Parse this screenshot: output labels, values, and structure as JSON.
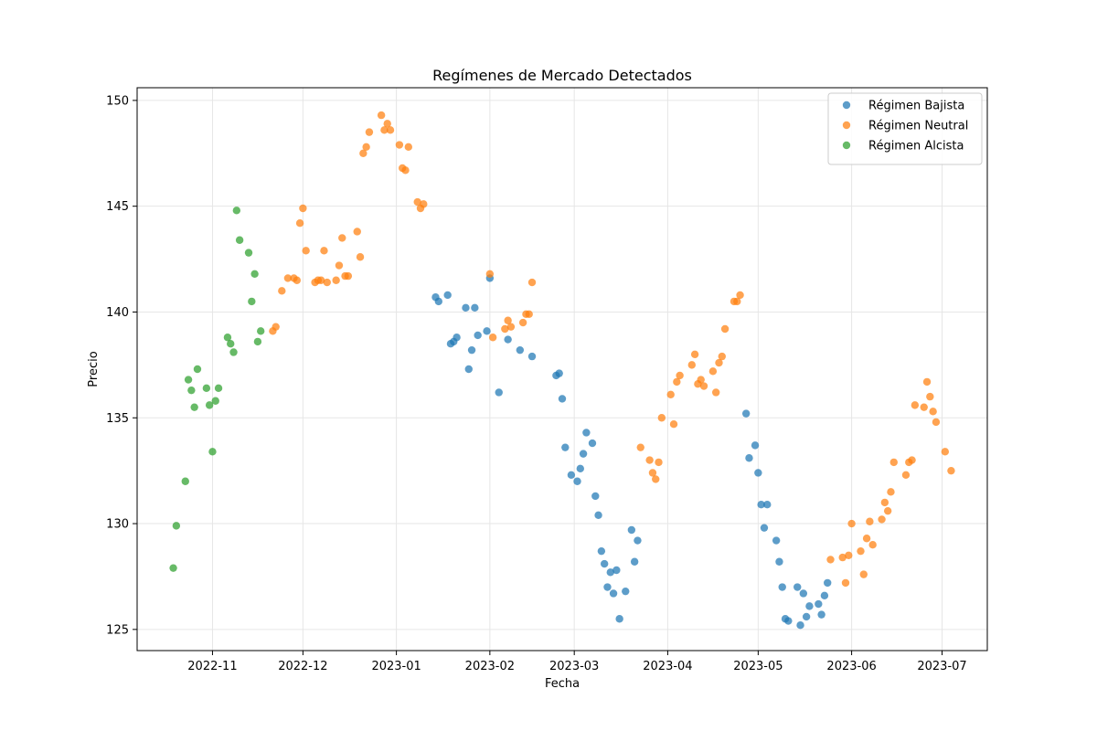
{
  "chart_data": {
    "type": "scatter",
    "title": "Regímenes de Mercado Detectados",
    "xlabel": "Fecha",
    "ylabel": "Precio",
    "x_type": "date",
    "xlim": [
      "2022-10-07",
      "2023-07-16"
    ],
    "ylim": [
      124.0,
      150.6
    ],
    "x_tick_labels": [
      "2022-11",
      "2022-12",
      "2023-01",
      "2023-02",
      "2023-03",
      "2023-04",
      "2023-05",
      "2023-06",
      "2023-07"
    ],
    "y_tick_labels": [
      "125",
      "130",
      "135",
      "140",
      "145",
      "150"
    ],
    "grid": true,
    "legend_position": "top-right",
    "series": [
      {
        "name": "Régimen Bajista",
        "color": "#1f77b4",
        "points": [
          [
            "2023-01-14",
            140.7
          ],
          [
            "2023-01-15",
            140.5
          ],
          [
            "2023-01-18",
            140.8
          ],
          [
            "2023-01-19",
            138.5
          ],
          [
            "2023-01-20",
            138.6
          ],
          [
            "2023-01-21",
            138.8
          ],
          [
            "2023-01-24",
            140.2
          ],
          [
            "2023-01-25",
            137.3
          ],
          [
            "2023-01-26",
            138.2
          ],
          [
            "2023-01-27",
            140.2
          ],
          [
            "2023-01-28",
            138.9
          ],
          [
            "2023-01-31",
            139.1
          ],
          [
            "2023-02-01",
            141.6
          ],
          [
            "2023-02-04",
            136.2
          ],
          [
            "2023-02-07",
            138.7
          ],
          [
            "2023-02-11",
            138.2
          ],
          [
            "2023-02-15",
            137.9
          ],
          [
            "2023-02-23",
            137.0
          ],
          [
            "2023-02-24",
            137.1
          ],
          [
            "2023-02-25",
            135.9
          ],
          [
            "2023-02-26",
            133.6
          ],
          [
            "2023-02-28",
            132.3
          ],
          [
            "2023-03-02",
            132.0
          ],
          [
            "2023-03-03",
            132.6
          ],
          [
            "2023-03-04",
            133.3
          ],
          [
            "2023-03-05",
            134.3
          ],
          [
            "2023-03-07",
            133.8
          ],
          [
            "2023-03-08",
            131.3
          ],
          [
            "2023-03-09",
            130.4
          ],
          [
            "2023-03-10",
            128.7
          ],
          [
            "2023-03-11",
            128.1
          ],
          [
            "2023-03-12",
            127.0
          ],
          [
            "2023-03-13",
            127.7
          ],
          [
            "2023-03-14",
            126.7
          ],
          [
            "2023-03-15",
            127.8
          ],
          [
            "2023-03-16",
            125.5
          ],
          [
            "2023-03-18",
            126.8
          ],
          [
            "2023-03-20",
            129.7
          ],
          [
            "2023-03-21",
            128.2
          ],
          [
            "2023-03-22",
            129.2
          ],
          [
            "2023-04-27",
            135.2
          ],
          [
            "2023-04-28",
            133.1
          ],
          [
            "2023-04-30",
            133.7
          ],
          [
            "2023-05-01",
            132.4
          ],
          [
            "2023-05-02",
            130.9
          ],
          [
            "2023-05-03",
            129.8
          ],
          [
            "2023-05-04",
            130.9
          ],
          [
            "2023-05-07",
            129.2
          ],
          [
            "2023-05-08",
            128.2
          ],
          [
            "2023-05-09",
            127.0
          ],
          [
            "2023-05-10",
            125.5
          ],
          [
            "2023-05-11",
            125.4
          ],
          [
            "2023-05-14",
            127.0
          ],
          [
            "2023-05-15",
            125.2
          ],
          [
            "2023-05-16",
            126.7
          ],
          [
            "2023-05-17",
            125.6
          ],
          [
            "2023-05-18",
            126.1
          ],
          [
            "2023-05-21",
            126.2
          ],
          [
            "2023-05-22",
            125.7
          ],
          [
            "2023-05-23",
            126.6
          ],
          [
            "2023-05-24",
            127.2
          ]
        ]
      },
      {
        "name": "Régimen Neutral",
        "color": "#ff7f0e",
        "points": [
          [
            "2022-11-21",
            139.1
          ],
          [
            "2022-11-22",
            139.3
          ],
          [
            "2022-11-24",
            141.0
          ],
          [
            "2022-11-26",
            141.6
          ],
          [
            "2022-11-28",
            141.6
          ],
          [
            "2022-11-29",
            141.5
          ],
          [
            "2022-11-30",
            144.2
          ],
          [
            "2022-12-01",
            144.9
          ],
          [
            "2022-12-02",
            142.9
          ],
          [
            "2022-12-05",
            141.4
          ],
          [
            "2022-12-06",
            141.5
          ],
          [
            "2022-12-07",
            141.5
          ],
          [
            "2022-12-08",
            142.9
          ],
          [
            "2022-12-09",
            141.4
          ],
          [
            "2022-12-12",
            141.5
          ],
          [
            "2022-12-13",
            142.2
          ],
          [
            "2022-12-14",
            143.5
          ],
          [
            "2022-12-15",
            141.7
          ],
          [
            "2022-12-16",
            141.7
          ],
          [
            "2022-12-19",
            143.8
          ],
          [
            "2022-12-20",
            142.6
          ],
          [
            "2022-12-21",
            147.5
          ],
          [
            "2022-12-22",
            147.8
          ],
          [
            "2022-12-23",
            148.5
          ],
          [
            "2022-12-27",
            149.3
          ],
          [
            "2022-12-28",
            148.6
          ],
          [
            "2022-12-29",
            148.9
          ],
          [
            "2022-12-30",
            148.6
          ],
          [
            "2023-01-02",
            147.9
          ],
          [
            "2023-01-03",
            146.8
          ],
          [
            "2023-01-04",
            146.7
          ],
          [
            "2023-01-05",
            147.8
          ],
          [
            "2023-01-08",
            145.2
          ],
          [
            "2023-01-09",
            144.9
          ],
          [
            "2023-01-10",
            145.1
          ],
          [
            "2023-02-01",
            141.8
          ],
          [
            "2023-02-02",
            138.8
          ],
          [
            "2023-02-06",
            139.2
          ],
          [
            "2023-02-07",
            139.6
          ],
          [
            "2023-02-08",
            139.3
          ],
          [
            "2023-02-12",
            139.5
          ],
          [
            "2023-02-13",
            139.9
          ],
          [
            "2023-02-14",
            139.9
          ],
          [
            "2023-02-15",
            141.4
          ],
          [
            "2023-03-23",
            133.6
          ],
          [
            "2023-03-26",
            133.0
          ],
          [
            "2023-03-27",
            132.4
          ],
          [
            "2023-03-28",
            132.1
          ],
          [
            "2023-03-29",
            132.9
          ],
          [
            "2023-03-30",
            135.0
          ],
          [
            "2023-04-02",
            136.1
          ],
          [
            "2023-04-03",
            134.7
          ],
          [
            "2023-04-04",
            136.7
          ],
          [
            "2023-04-05",
            137.0
          ],
          [
            "2023-04-09",
            137.5
          ],
          [
            "2023-04-10",
            138.0
          ],
          [
            "2023-04-11",
            136.6
          ],
          [
            "2023-04-12",
            136.8
          ],
          [
            "2023-04-13",
            136.5
          ],
          [
            "2023-04-16",
            137.2
          ],
          [
            "2023-04-17",
            136.2
          ],
          [
            "2023-04-18",
            137.6
          ],
          [
            "2023-04-19",
            137.9
          ],
          [
            "2023-04-20",
            139.2
          ],
          [
            "2023-04-23",
            140.5
          ],
          [
            "2023-04-24",
            140.5
          ],
          [
            "2023-04-25",
            140.8
          ],
          [
            "2023-05-25",
            128.3
          ],
          [
            "2023-05-29",
            128.4
          ],
          [
            "2023-05-30",
            127.2
          ],
          [
            "2023-05-31",
            128.5
          ],
          [
            "2023-06-01",
            130.0
          ],
          [
            "2023-06-04",
            128.7
          ],
          [
            "2023-06-05",
            127.6
          ],
          [
            "2023-06-06",
            129.3
          ],
          [
            "2023-06-07",
            130.1
          ],
          [
            "2023-06-08",
            129.0
          ],
          [
            "2023-06-11",
            130.2
          ],
          [
            "2023-06-12",
            131.0
          ],
          [
            "2023-06-13",
            130.6
          ],
          [
            "2023-06-14",
            131.5
          ],
          [
            "2023-06-15",
            132.9
          ],
          [
            "2023-06-19",
            132.3
          ],
          [
            "2023-06-20",
            132.9
          ],
          [
            "2023-06-21",
            133.0
          ],
          [
            "2023-06-22",
            135.6
          ],
          [
            "2023-06-25",
            135.5
          ],
          [
            "2023-06-26",
            136.7
          ],
          [
            "2023-06-27",
            136.0
          ],
          [
            "2023-06-28",
            135.3
          ],
          [
            "2023-06-29",
            134.8
          ],
          [
            "2023-07-02",
            133.4
          ],
          [
            "2023-07-04",
            132.5
          ]
        ]
      },
      {
        "name": "Régimen Alcista",
        "color": "#2ca02c",
        "points": [
          [
            "2022-10-19",
            127.9
          ],
          [
            "2022-10-20",
            129.9
          ],
          [
            "2022-10-23",
            132.0
          ],
          [
            "2022-10-24",
            136.8
          ],
          [
            "2022-10-25",
            136.3
          ],
          [
            "2022-10-26",
            135.5
          ],
          [
            "2022-10-27",
            137.3
          ],
          [
            "2022-10-30",
            136.4
          ],
          [
            "2022-10-31",
            135.6
          ],
          [
            "2022-11-01",
            133.4
          ],
          [
            "2022-11-02",
            135.8
          ],
          [
            "2022-11-03",
            136.4
          ],
          [
            "2022-11-06",
            138.8
          ],
          [
            "2022-11-07",
            138.5
          ],
          [
            "2022-11-08",
            138.1
          ],
          [
            "2022-11-09",
            144.8
          ],
          [
            "2022-11-10",
            143.4
          ],
          [
            "2022-11-13",
            142.8
          ],
          [
            "2022-11-14",
            140.5
          ],
          [
            "2022-11-15",
            141.8
          ],
          [
            "2022-11-16",
            138.6
          ],
          [
            "2022-11-17",
            139.1
          ]
        ]
      }
    ]
  }
}
